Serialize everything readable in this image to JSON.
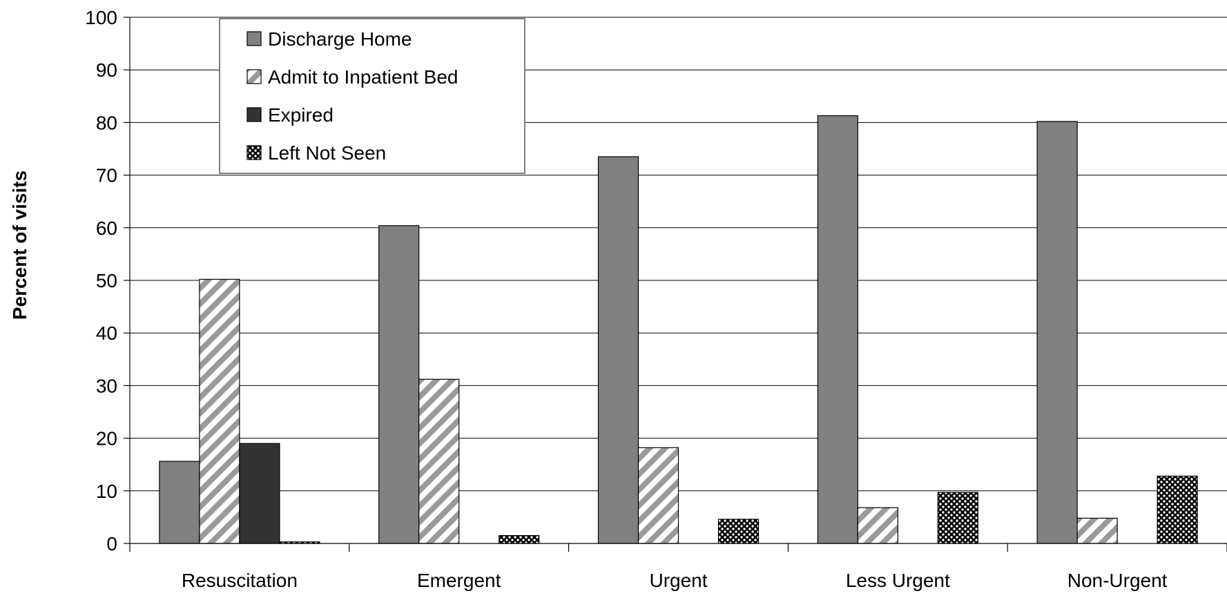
{
  "chart_data": {
    "type": "bar",
    "title": "",
    "xlabel": "",
    "ylabel": "Percent of visits",
    "ylim": [
      0,
      100
    ],
    "yticks": [
      0,
      10,
      20,
      30,
      40,
      50,
      60,
      70,
      80,
      90,
      100
    ],
    "grid": true,
    "legend_position": "top-left",
    "categories": [
      "Resuscitation",
      "Emergent",
      "Urgent",
      "Less Urgent",
      "Non-Urgent"
    ],
    "series": [
      {
        "name": "Discharge Home",
        "values": [
          15.6,
          60.4,
          73.5,
          81.3,
          80.2
        ],
        "color": "#808080",
        "pattern": "solid"
      },
      {
        "name": "Admit to Inpatient Bed",
        "values": [
          50.2,
          31.2,
          18.2,
          6.8,
          4.8
        ],
        "color": "#808080",
        "pattern": "diagonal-stripes"
      },
      {
        "name": "Expired",
        "values": [
          19.0,
          0,
          0,
          0,
          0
        ],
        "color": "#333333",
        "pattern": "solid"
      },
      {
        "name": "Left Not Seen",
        "values": [
          0.3,
          1.5,
          4.6,
          9.7,
          12.8
        ],
        "color": "#000000",
        "pattern": "checker"
      }
    ]
  }
}
